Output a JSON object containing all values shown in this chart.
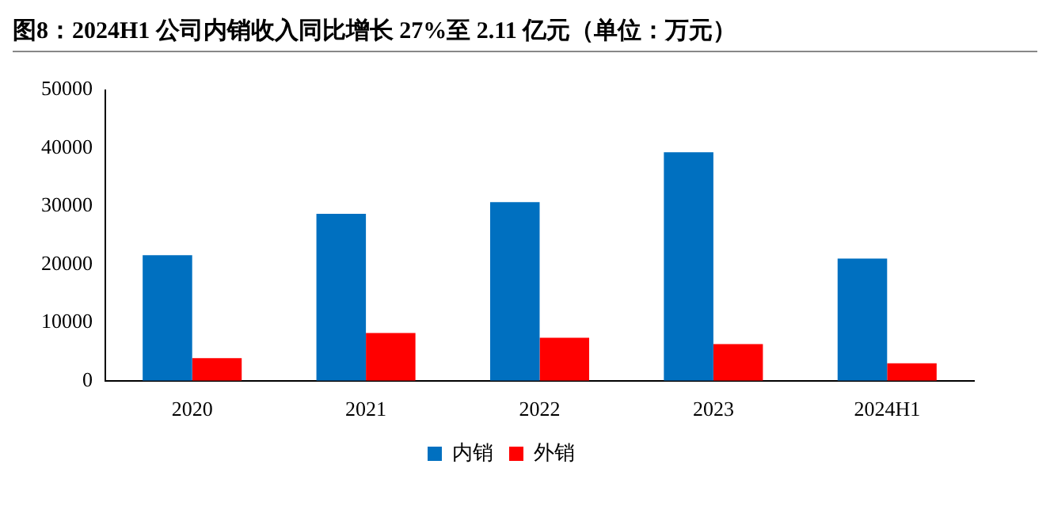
{
  "chart_data": {
    "type": "bar",
    "title": "图8：2024H1 公司内销收入同比增长 27%至 2.11 亿元（单位：万元）",
    "categories": [
      "2020",
      "2021",
      "2022",
      "2023",
      "2024H1"
    ],
    "series": [
      {
        "name": "内销",
        "color": "#0070c0",
        "values": [
          21600,
          28700,
          30700,
          39300,
          21000
        ]
      },
      {
        "name": "外销",
        "color": "#ff0000",
        "values": [
          3900,
          8200,
          7400,
          6300,
          3000
        ]
      }
    ],
    "ylim": [
      0,
      50000
    ],
    "yticks": [
      0,
      10000,
      20000,
      30000,
      40000,
      50000
    ],
    "grid": false,
    "legend": "bottom"
  }
}
